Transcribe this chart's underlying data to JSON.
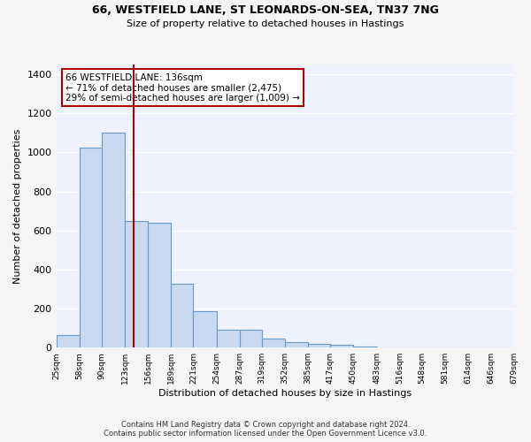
{
  "title_line1": "66, WESTFIELD LANE, ST LEONARDS-ON-SEA, TN37 7NG",
  "title_line2": "Size of property relative to detached houses in Hastings",
  "xlabel": "Distribution of detached houses by size in Hastings",
  "ylabel": "Number of detached properties",
  "annotation_line1": "66 WESTFIELD LANE: 136sqm",
  "annotation_line2": "← 71% of detached houses are smaller (2,475)",
  "annotation_line3": "29% of semi-detached houses are larger (1,009) →",
  "bar_color": "#c9d9f0",
  "bar_edge_color": "#6699cc",
  "vline_value": 136,
  "vline_color": "#aa0000",
  "bin_edges": [
    25,
    58,
    90,
    123,
    156,
    189,
    221,
    254,
    287,
    319,
    352,
    385,
    417,
    450,
    483,
    516,
    548,
    581,
    614,
    646,
    679
  ],
  "bar_values": [
    65,
    1025,
    1100,
    650,
    640,
    325,
    185,
    90,
    90,
    45,
    30,
    20,
    15,
    5,
    2,
    1,
    0,
    0,
    0,
    0
  ],
  "ylim": [
    0,
    1450
  ],
  "yticks": [
    0,
    200,
    400,
    600,
    800,
    1000,
    1200,
    1400
  ],
  "bg_color": "#eef2ff",
  "fig_bg_color": "#f5f5f5",
  "grid_color": "#ffffff",
  "footer_line1": "Contains HM Land Registry data © Crown copyright and database right 2024.",
  "footer_line2": "Contains public sector information licensed under the Open Government Licence v3.0."
}
